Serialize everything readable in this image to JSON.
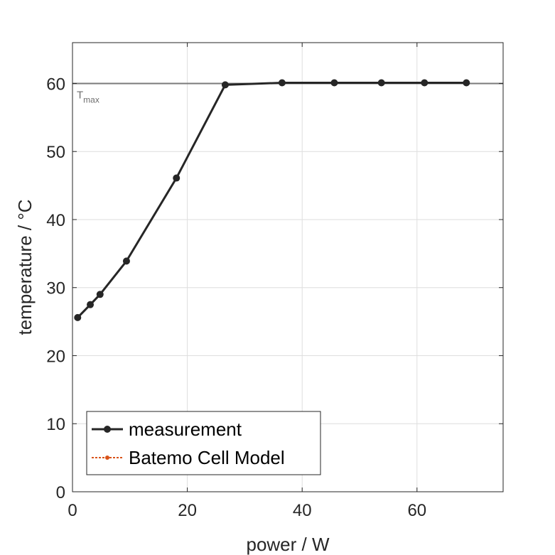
{
  "chart_data": {
    "type": "line",
    "title": "",
    "xlabel": "power / W",
    "ylabel": "temperature / °C",
    "xlim": [
      0,
      75
    ],
    "ylim": [
      0,
      66
    ],
    "xticks": [
      0,
      20,
      40,
      60
    ],
    "yticks": [
      0,
      10,
      20,
      30,
      40,
      50,
      60
    ],
    "grid": true,
    "legend_position": "bottom-left",
    "series": [
      {
        "name": "measurement",
        "color": "#262626",
        "marker": "circle",
        "x": [
          0.9,
          3.1,
          4.8,
          9.4,
          18.1,
          26.6,
          36.5,
          45.6,
          53.8,
          61.3,
          68.6
        ],
        "y": [
          25.6,
          27.5,
          29.0,
          33.9,
          46.1,
          59.8,
          60.1,
          60.1,
          60.1,
          60.1,
          60.1
        ]
      },
      {
        "name": "Batemo Cell Model",
        "color": "#d95319",
        "marker": "dot",
        "dashed": true,
        "x": [],
        "y": []
      }
    ],
    "reference_lines": [
      {
        "label_main": "T",
        "label_sub": "max",
        "y": 60,
        "color": "#7a7a7a"
      }
    ]
  }
}
